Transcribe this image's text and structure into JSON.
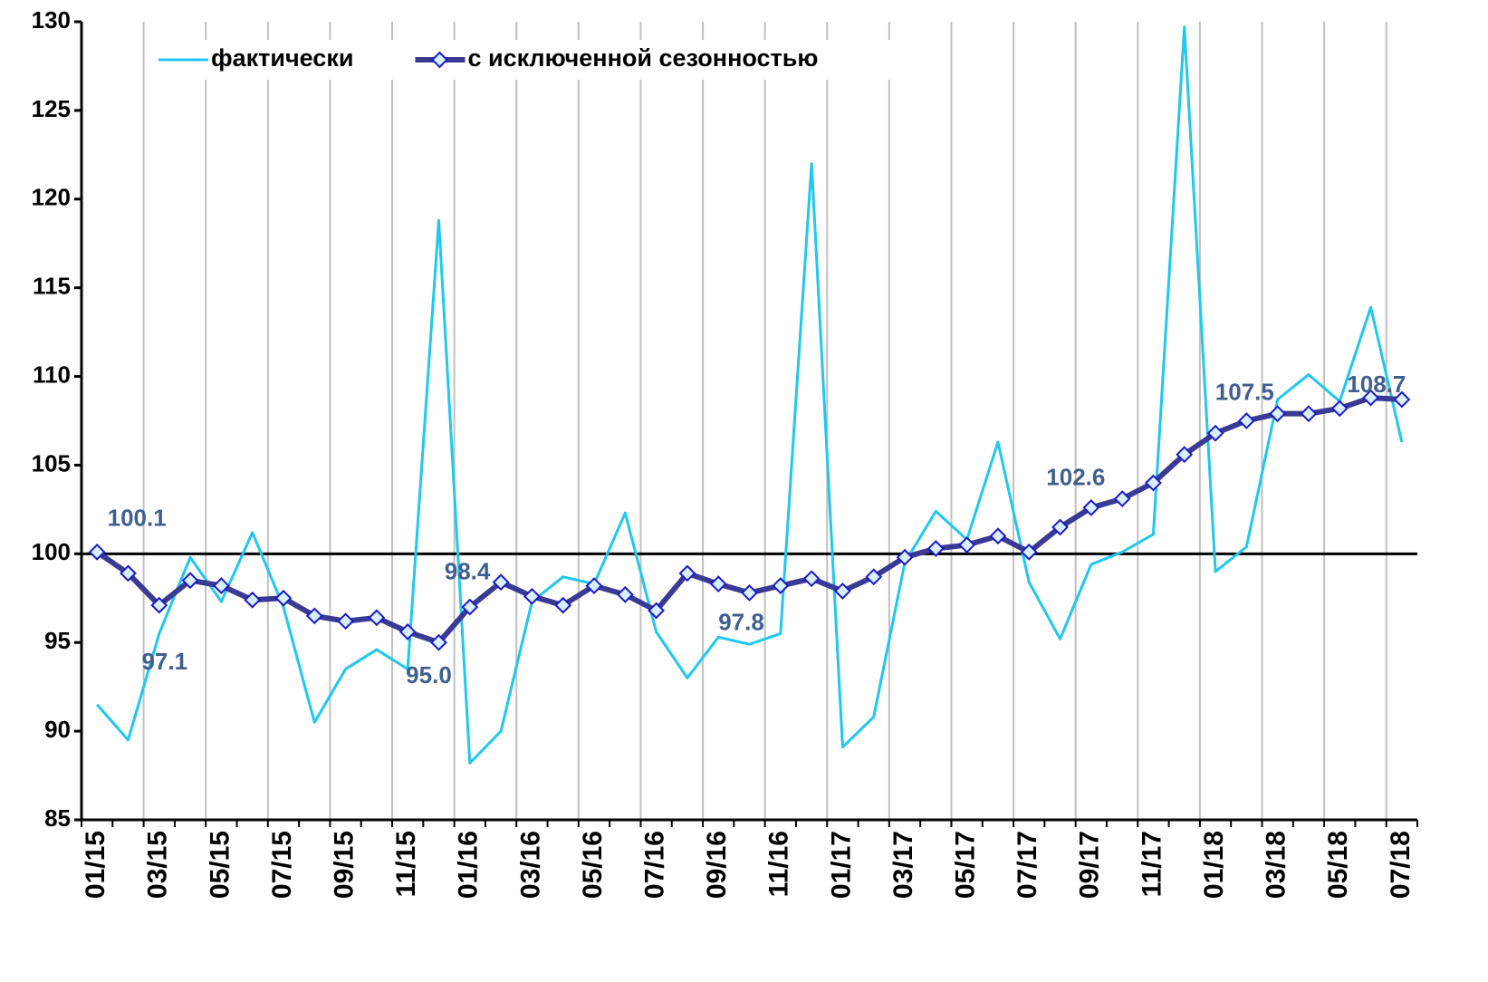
{
  "chart_data": {
    "type": "line",
    "categories": [
      "01/15",
      null,
      "03/15",
      null,
      "05/15",
      null,
      "07/15",
      null,
      "09/15",
      null,
      "11/15",
      null,
      "01/16",
      null,
      "03/16",
      null,
      "05/16",
      null,
      "07/16",
      null,
      "09/16",
      null,
      "11/16",
      null,
      "01/17",
      null,
      "03/17",
      null,
      "05/17",
      null,
      "07/17",
      null,
      "09/17",
      null,
      "11/17",
      null,
      "01/18",
      null,
      "03/18",
      null,
      "05/18",
      null,
      "07/18"
    ],
    "series": [
      {
        "name": "фактически",
        "color": "#1ec8f0",
        "values": [
          91.5,
          89.5,
          95.5,
          99.8,
          97.3,
          101.2,
          97.0,
          90.5,
          93.5,
          94.6,
          93.5,
          118.8,
          88.2,
          90.0,
          97.3,
          98.7,
          98.3,
          102.3,
          95.6,
          93.0,
          95.3,
          94.9,
          95.5,
          122.0,
          89.1,
          90.8,
          99.5,
          102.4,
          100.8,
          106.3,
          98.4,
          95.2,
          99.4,
          100.1,
          101.1,
          129.7,
          99.0,
          100.4,
          108.7,
          110.1,
          108.6,
          113.9,
          106.3
        ]
      },
      {
        "name": "с исключенной сезонностью",
        "color": "#3a3a94",
        "marker": "diamond",
        "values": [
          100.1,
          98.9,
          97.1,
          98.5,
          98.2,
          97.4,
          97.5,
          96.5,
          96.2,
          96.4,
          95.6,
          95.0,
          97.0,
          98.4,
          97.6,
          97.1,
          98.2,
          97.7,
          96.8,
          98.9,
          98.3,
          97.8,
          98.2,
          98.6,
          97.9,
          98.7,
          99.8,
          100.3,
          100.5,
          101.0,
          100.1,
          101.5,
          102.6,
          103.1,
          104.0,
          105.6,
          106.8,
          107.5,
          107.9,
          107.9,
          108.2,
          108.8,
          108.7
        ],
        "value_labels": [
          "100.1",
          null,
          "97.1",
          null,
          null,
          null,
          null,
          null,
          null,
          null,
          null,
          "95.0",
          null,
          "98.4",
          null,
          null,
          null,
          null,
          null,
          null,
          null,
          "97.8",
          null,
          null,
          null,
          null,
          null,
          null,
          null,
          null,
          null,
          null,
          "102.6",
          null,
          null,
          null,
          null,
          "107.5",
          null,
          null,
          null,
          null,
          "108.7"
        ]
      }
    ],
    "ylim": [
      85,
      130
    ],
    "yticks": [
      85,
      90,
      95,
      100,
      105,
      110,
      115,
      120,
      125,
      130
    ],
    "reference_line": 100,
    "grid": true,
    "legend": "top-left"
  }
}
